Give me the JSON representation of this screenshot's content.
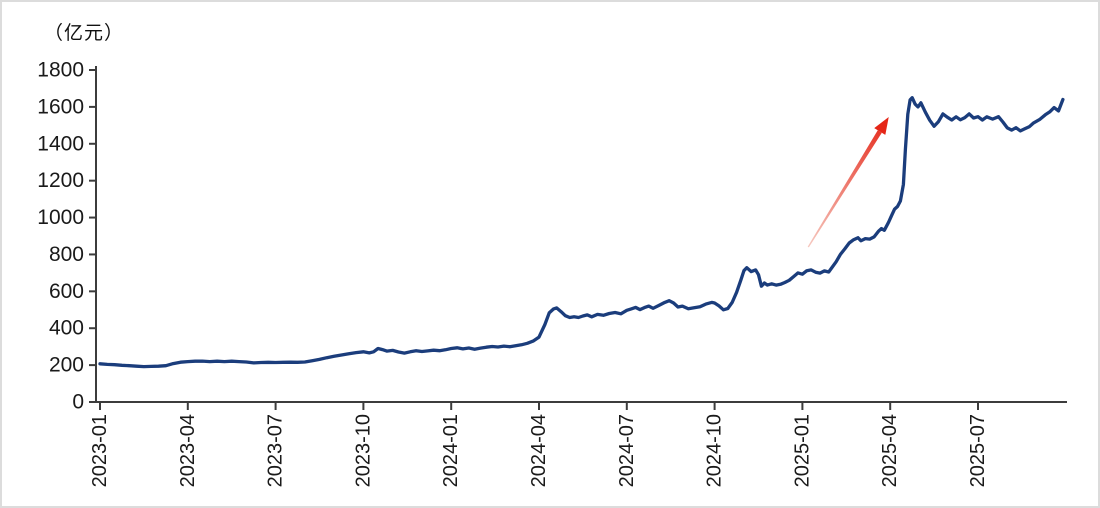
{
  "colors": {
    "line": "#1b3d7c",
    "axis": "#3c3c3c",
    "text": "#1a1a1a",
    "frame_border": "#dcdcdc",
    "arrow_tail": "#f6c9c0",
    "arrow_head": "#e52617"
  },
  "chart_data": {
    "type": "line",
    "title": "",
    "unit_label": "（亿元）",
    "ylabel": "（亿元）",
    "xlabel": "",
    "ylim": [
      0,
      1800
    ],
    "y_ticks": [
      0,
      200,
      400,
      600,
      800,
      1000,
      1200,
      1400,
      1600,
      1800
    ],
    "x_tick_labels": [
      "2023-01",
      "2023-04",
      "2023-07",
      "2023-10",
      "2024-01",
      "2024-04",
      "2024-07",
      "2024-10",
      "2025-01",
      "2025-04",
      "2025-07"
    ],
    "x_tick_interval_months": 3,
    "x_range_months": [
      0,
      33
    ],
    "grid": false,
    "legend": null,
    "series": [
      {
        "name": "",
        "color": "#1b3d7c",
        "points": [
          [
            0,
            207
          ],
          [
            0.25,
            204
          ],
          [
            0.5,
            202
          ],
          [
            0.75,
            199
          ],
          [
            1,
            197
          ],
          [
            1.25,
            194
          ],
          [
            1.5,
            192
          ],
          [
            1.75,
            193
          ],
          [
            2,
            194
          ],
          [
            2.25,
            197
          ],
          [
            2.5,
            208
          ],
          [
            2.75,
            216
          ],
          [
            3,
            219
          ],
          [
            3.25,
            221
          ],
          [
            3.5,
            222
          ],
          [
            3.75,
            219
          ],
          [
            4,
            221
          ],
          [
            4.25,
            219
          ],
          [
            4.5,
            221
          ],
          [
            4.75,
            219
          ],
          [
            5,
            217
          ],
          [
            5.25,
            212
          ],
          [
            5.5,
            214
          ],
          [
            5.75,
            215
          ],
          [
            6,
            214
          ],
          [
            6.25,
            215
          ],
          [
            6.5,
            216
          ],
          [
            6.75,
            215
          ],
          [
            7,
            217
          ],
          [
            7.25,
            224
          ],
          [
            7.5,
            231
          ],
          [
            7.75,
            240
          ],
          [
            8,
            248
          ],
          [
            8.25,
            255
          ],
          [
            8.5,
            262
          ],
          [
            8.75,
            268
          ],
          [
            9,
            272
          ],
          [
            9.2,
            266
          ],
          [
            9.35,
            272
          ],
          [
            9.5,
            290
          ],
          [
            9.65,
            284
          ],
          [
            9.8,
            276
          ],
          [
            10,
            280
          ],
          [
            10.2,
            271
          ],
          [
            10.4,
            265
          ],
          [
            10.6,
            272
          ],
          [
            10.8,
            278
          ],
          [
            11,
            274
          ],
          [
            11.2,
            277
          ],
          [
            11.4,
            281
          ],
          [
            11.6,
            278
          ],
          [
            11.8,
            283
          ],
          [
            12,
            290
          ],
          [
            12.2,
            294
          ],
          [
            12.4,
            288
          ],
          [
            12.6,
            293
          ],
          [
            12.8,
            286
          ],
          [
            13,
            292
          ],
          [
            13.2,
            297
          ],
          [
            13.4,
            301
          ],
          [
            13.6,
            298
          ],
          [
            13.8,
            303
          ],
          [
            14,
            300
          ],
          [
            14.2,
            305
          ],
          [
            14.4,
            310
          ],
          [
            14.6,
            318
          ],
          [
            14.8,
            330
          ],
          [
            15,
            352
          ],
          [
            15.2,
            420
          ],
          [
            15.35,
            483
          ],
          [
            15.5,
            505
          ],
          [
            15.6,
            510
          ],
          [
            15.75,
            490
          ],
          [
            15.9,
            468
          ],
          [
            16.05,
            458
          ],
          [
            16.2,
            462
          ],
          [
            16.35,
            458
          ],
          [
            16.5,
            466
          ],
          [
            16.65,
            472
          ],
          [
            16.8,
            462
          ],
          [
            17,
            475
          ],
          [
            17.2,
            470
          ],
          [
            17.4,
            480
          ],
          [
            17.6,
            485
          ],
          [
            17.8,
            478
          ],
          [
            18,
            497
          ],
          [
            18.15,
            505
          ],
          [
            18.3,
            513
          ],
          [
            18.45,
            501
          ],
          [
            18.6,
            512
          ],
          [
            18.75,
            520
          ],
          [
            18.9,
            508
          ],
          [
            19.1,
            524
          ],
          [
            19.3,
            540
          ],
          [
            19.45,
            549
          ],
          [
            19.6,
            537
          ],
          [
            19.75,
            515
          ],
          [
            19.9,
            520
          ],
          [
            20.1,
            506
          ],
          [
            20.3,
            511
          ],
          [
            20.5,
            516
          ],
          [
            20.7,
            531
          ],
          [
            20.9,
            540
          ],
          [
            21,
            537
          ],
          [
            21.15,
            521
          ],
          [
            21.3,
            500
          ],
          [
            21.45,
            507
          ],
          [
            21.6,
            540
          ],
          [
            21.75,
            595
          ],
          [
            21.9,
            662
          ],
          [
            22,
            712
          ],
          [
            22.1,
            728
          ],
          [
            22.25,
            707
          ],
          [
            22.4,
            716
          ],
          [
            22.5,
            690
          ],
          [
            22.6,
            628
          ],
          [
            22.7,
            645
          ],
          [
            22.8,
            634
          ],
          [
            22.95,
            641
          ],
          [
            23.1,
            634
          ],
          [
            23.25,
            638
          ],
          [
            23.4,
            648
          ],
          [
            23.55,
            660
          ],
          [
            23.7,
            680
          ],
          [
            23.85,
            700
          ],
          [
            24,
            693
          ],
          [
            24.15,
            712
          ],
          [
            24.3,
            716
          ],
          [
            24.45,
            704
          ],
          [
            24.6,
            699
          ],
          [
            24.75,
            711
          ],
          [
            24.9,
            705
          ],
          [
            25,
            727
          ],
          [
            25.15,
            760
          ],
          [
            25.3,
            800
          ],
          [
            25.45,
            830
          ],
          [
            25.6,
            862
          ],
          [
            25.75,
            880
          ],
          [
            25.9,
            891
          ],
          [
            26,
            874
          ],
          [
            26.15,
            886
          ],
          [
            26.3,
            883
          ],
          [
            26.45,
            895
          ],
          [
            26.6,
            926
          ],
          [
            26.7,
            940
          ],
          [
            26.8,
            931
          ],
          [
            26.95,
            976
          ],
          [
            27.05,
            1012
          ],
          [
            27.15,
            1046
          ],
          [
            27.25,
            1060
          ],
          [
            27.35,
            1090
          ],
          [
            27.45,
            1180
          ],
          [
            27.52,
            1370
          ],
          [
            27.6,
            1560
          ],
          [
            27.68,
            1638
          ],
          [
            27.75,
            1650
          ],
          [
            27.85,
            1615
          ],
          [
            27.95,
            1600
          ],
          [
            28.05,
            1622
          ],
          [
            28.2,
            1572
          ],
          [
            28.35,
            1528
          ],
          [
            28.5,
            1495
          ],
          [
            28.65,
            1520
          ],
          [
            28.8,
            1562
          ],
          [
            28.95,
            1544
          ],
          [
            29.1,
            1529
          ],
          [
            29.25,
            1546
          ],
          [
            29.4,
            1530
          ],
          [
            29.55,
            1542
          ],
          [
            29.7,
            1562
          ],
          [
            29.85,
            1540
          ],
          [
            30,
            1547
          ],
          [
            30.15,
            1529
          ],
          [
            30.3,
            1546
          ],
          [
            30.5,
            1534
          ],
          [
            30.7,
            1547
          ],
          [
            30.85,
            1518
          ],
          [
            31,
            1486
          ],
          [
            31.15,
            1474
          ],
          [
            31.3,
            1487
          ],
          [
            31.45,
            1470
          ],
          [
            31.6,
            1481
          ],
          [
            31.75,
            1492
          ],
          [
            31.9,
            1513
          ],
          [
            32.1,
            1531
          ],
          [
            32.3,
            1557
          ],
          [
            32.45,
            1573
          ],
          [
            32.6,
            1596
          ],
          [
            32.75,
            1578
          ],
          [
            32.9,
            1640
          ]
        ]
      }
    ],
    "annotation": {
      "type": "arrow",
      "from": {
        "month": 24.2,
        "value": 840
      },
      "to": {
        "month": 26.95,
        "value": 1545
      },
      "color_tail": "#f6c9c0",
      "color_head": "#e52617"
    }
  }
}
